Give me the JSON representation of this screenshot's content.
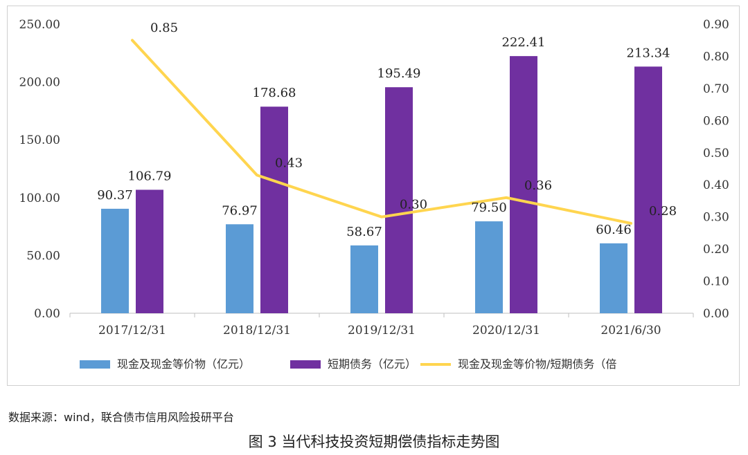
{
  "chart_data": {
    "type": "bar",
    "categories": [
      "2017/12/31",
      "2018/12/31",
      "2019/12/31",
      "2020/12/31",
      "2021/6/30"
    ],
    "series": [
      {
        "name": "现金及现金等价物（亿元）",
        "type": "bar",
        "axis": "left",
        "color": "#5b9bd5",
        "values": [
          90.37,
          76.97,
          58.67,
          79.5,
          60.46
        ],
        "labels": [
          "90.37",
          "76.97",
          "58.67",
          "79.50",
          "60.46"
        ]
      },
      {
        "name": "短期债务（亿元）",
        "type": "bar",
        "axis": "left",
        "color": "#7030a0",
        "values": [
          106.79,
          178.68,
          195.49,
          222.41,
          213.34
        ],
        "labels": [
          "106.79",
          "178.68",
          "195.49",
          "222.41",
          "213.34"
        ]
      },
      {
        "name": "现金及现金等价物/短期债务（倍",
        "type": "line",
        "axis": "right",
        "color": "#ffd54f",
        "values": [
          0.85,
          0.43,
          0.3,
          0.36,
          0.28
        ],
        "labels": [
          "0.85",
          "0.43",
          "0.30",
          "0.36",
          "0.28"
        ]
      }
    ],
    "yAxisLeft": {
      "min": 0,
      "max": 250,
      "step": 50,
      "ticks": [
        "0.00",
        "50.00",
        "100.00",
        "150.00",
        "200.00",
        "250.00"
      ]
    },
    "yAxisRight": {
      "min": 0,
      "max": 0.9,
      "step": 0.1,
      "ticks": [
        "0.00",
        "0.10",
        "0.20",
        "0.30",
        "0.40",
        "0.50",
        "0.60",
        "0.70",
        "0.80",
        "0.90"
      ]
    },
    "grid": false,
    "legend_position": "bottom"
  },
  "source_note": "数据来源：wind，联合债市信用风险投研平台",
  "caption": "图 3    当代科技投资短期偿债指标走势图"
}
